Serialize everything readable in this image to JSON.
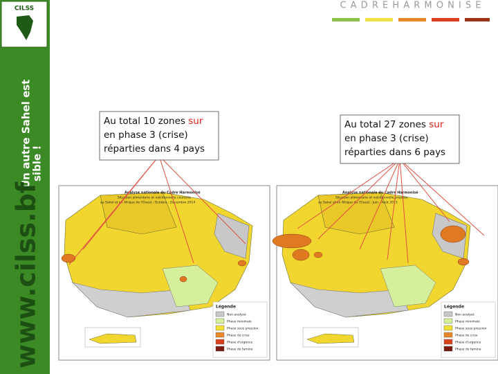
{
  "header": {
    "title": "C A D R E     H A R M O N I S E"
  },
  "sidebar": {
    "logo": "CILSS",
    "slogan_line1": "Un autre Sahel est",
    "slogan_line2": "sible !",
    "url": "www.cilss.bf"
  },
  "callouts": [
    {
      "line1": "Au total 10 zones ",
      "highlight": "sur",
      "line2": "en phase 3 (crise)",
      "line3": "réparties dans 4 pays"
    },
    {
      "line1": "Au total 27 zones ",
      "highlight": "sur",
      "line2": "en phase 3 (crise)",
      "line3": "réparties dans 6 pays"
    }
  ],
  "maps": [
    {
      "title": "Analyse nationale du Cadre Harmonisé",
      "subtitle1": "Situation alimentaire et nutritionnelle courante",
      "subtitle2": "au Sahel et en Afrique de l'Ouest : Octobre - Décembre 2014",
      "legend_title": "Légende",
      "legend": [
        "Non analysé",
        "Phase minimale",
        "Phase sous pression",
        "Phase de crise",
        "Phase d'urgence",
        "Phase de famine"
      ]
    },
    {
      "title": "Analyse nationale du Cadre Harmonisé",
      "subtitle1": "Situation alimentaire et nutritionnelle projetée",
      "subtitle2": "au Sahel et en Afrique de l'Ouest : Juin - Août 2015",
      "legend_title": "Légende",
      "legend": [
        "Non analysé",
        "Phase minimale",
        "Phase sous pression",
        "Phase de crise",
        "Phase d'urgence",
        "Phase de famine"
      ]
    }
  ]
}
